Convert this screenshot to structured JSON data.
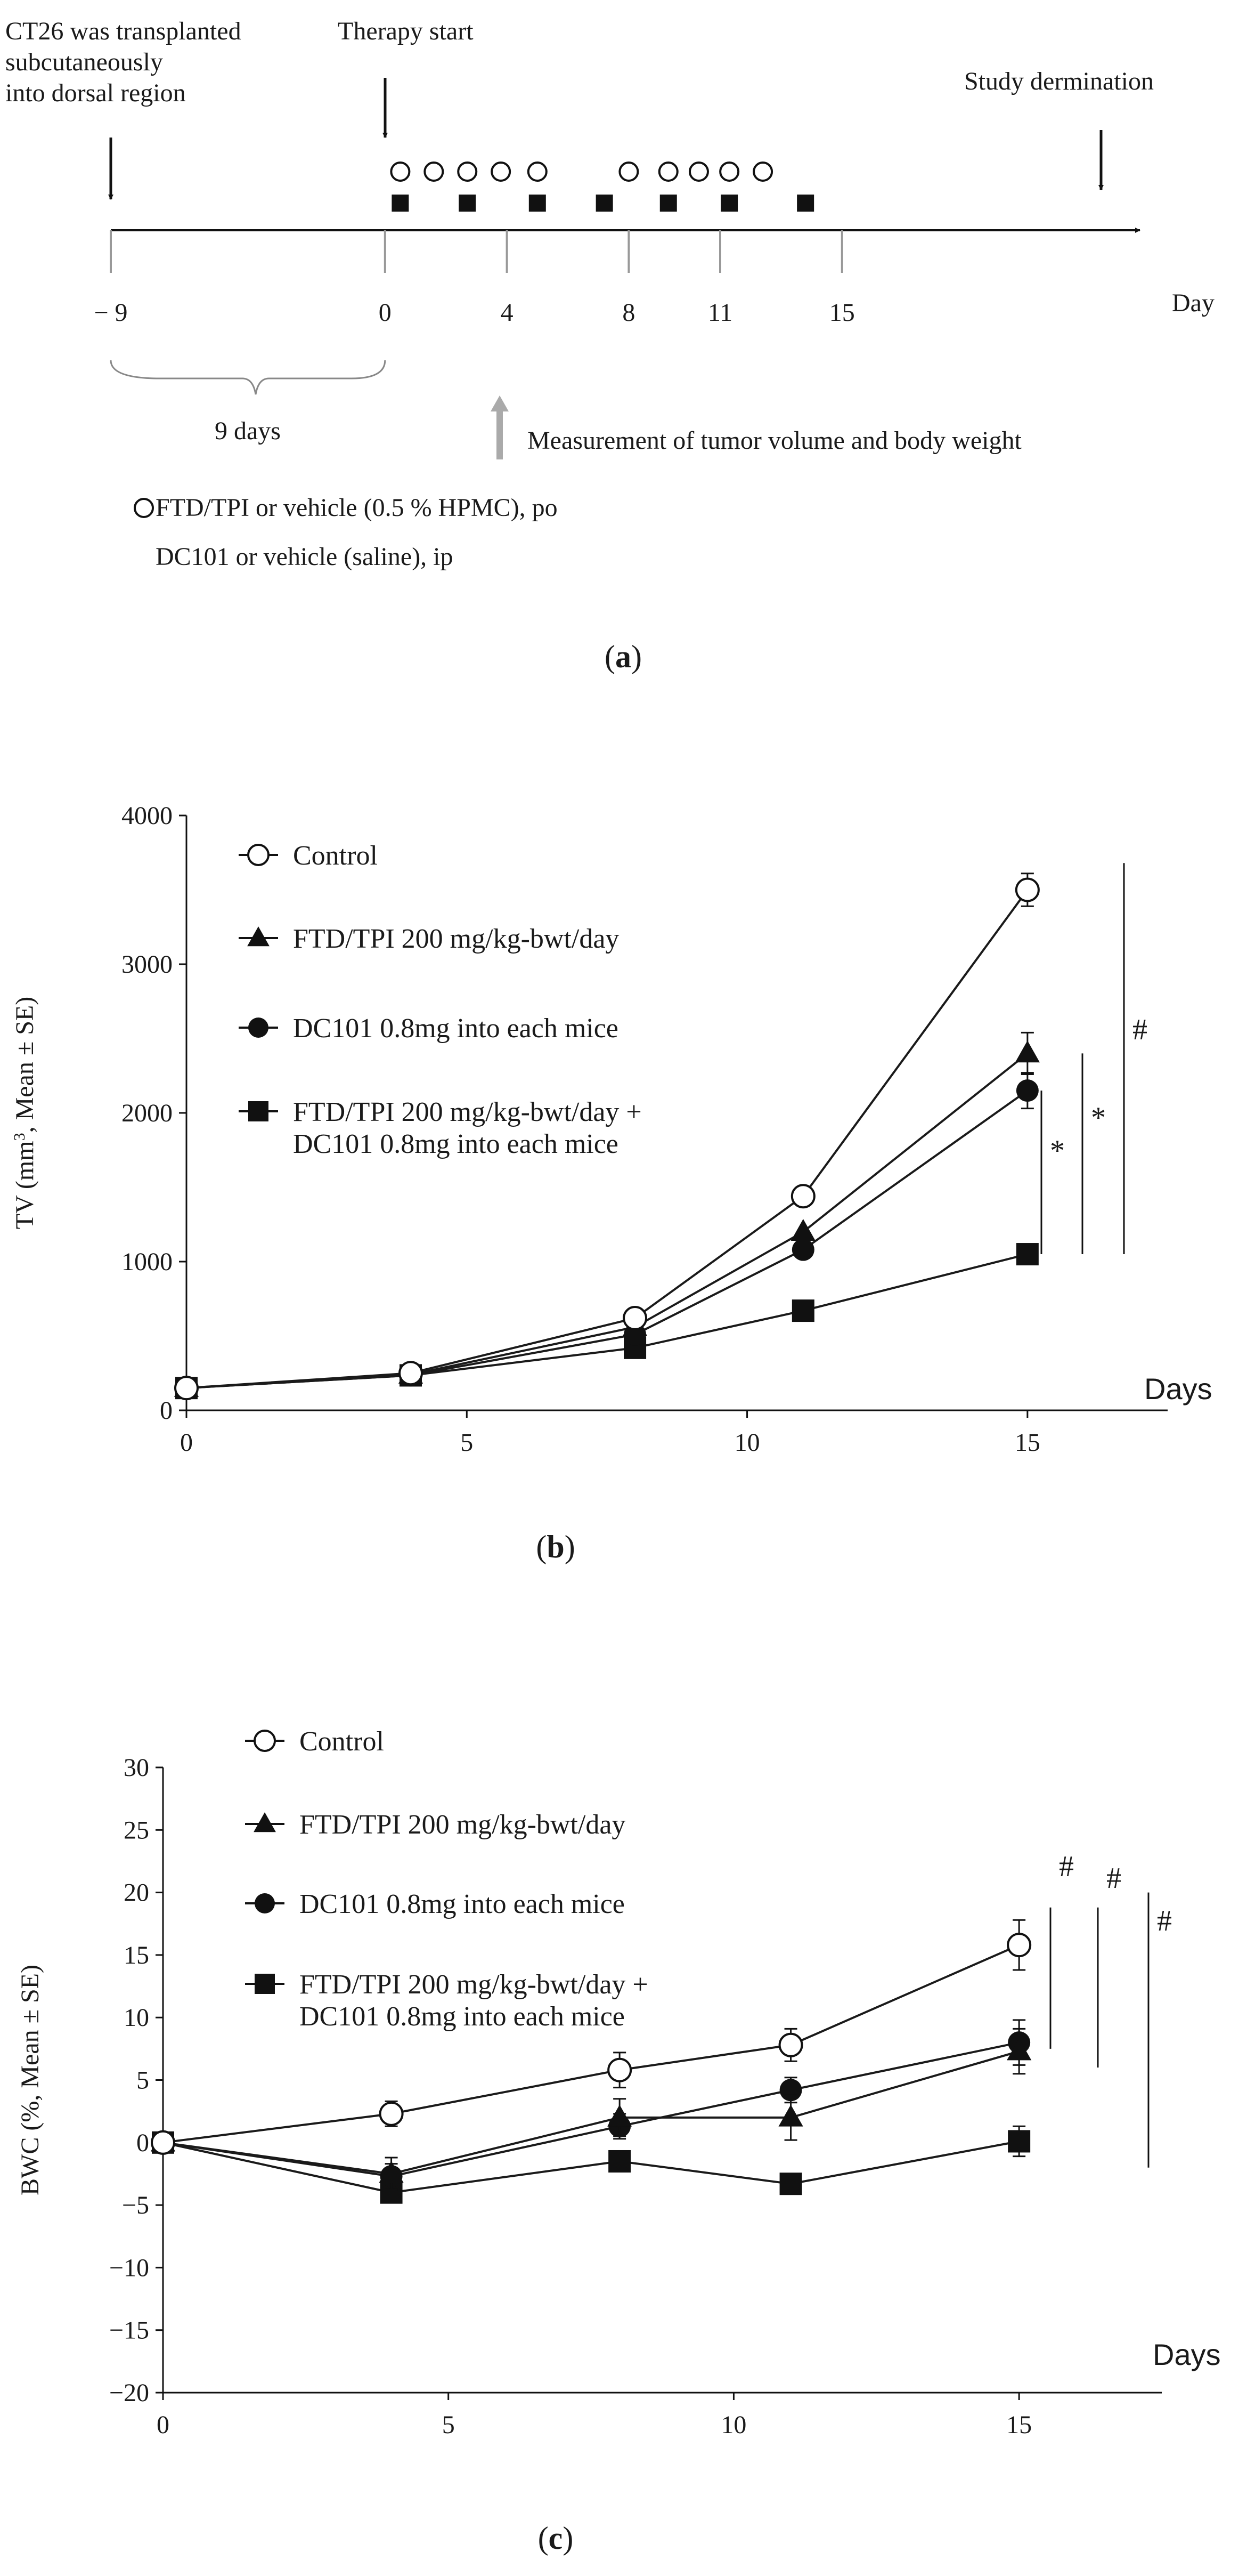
{
  "panel_a": {
    "transplant_label": [
      "CT26 was transplanted",
      "subcutaneously",
      " into dorsal region"
    ],
    "therapy_label": "Therapy start",
    "termination_label": "Study dermination",
    "day_ticks": [
      -9,
      0,
      4,
      8,
      11,
      15
    ],
    "day_tick_labels": [
      "− 9",
      "0",
      "4",
      "8",
      "11",
      "15"
    ],
    "day_unit": "Day",
    "ftd_dose_days": [
      0.5,
      1.6,
      2.7,
      3.8,
      5,
      8,
      9.3,
      10.3,
      11.3,
      12.4
    ],
    "dc101_dose_days": [
      0.5,
      2.7,
      5,
      7.2,
      9.3,
      11.3,
      13.8
    ],
    "interval_label": "9 days",
    "measurement_label": "Measurement of tumor volume and body weight",
    "legend": [
      {
        "symbol": "open-circle",
        "text": "FTD/TPI or vehicle (0.5 % HPMC), po"
      },
      {
        "symbol": "filled-square",
        "text": "DC101 or vehicle (saline), ip"
      }
    ],
    "caption": "a"
  },
  "chart_data": [
    {
      "type": "line",
      "panel": "b",
      "title": "",
      "xlabel": "Days",
      "ylabel": "TV (mm3, Mean ± SE)",
      "ylabel_parts": {
        "pre": "TV (mm",
        "sup": "3",
        "post": ", Mean ± SE)"
      },
      "xlim": [
        0,
        17.5
      ],
      "ylim": [
        0,
        4000
      ],
      "xticks": [
        0,
        5,
        10,
        15
      ],
      "yticks": [
        0,
        1000,
        2000,
        3000,
        4000
      ],
      "x": [
        0,
        4,
        8,
        11,
        15
      ],
      "series": [
        {
          "name": "Control",
          "marker": "open-circle",
          "values": [
            150,
            250,
            620,
            1440,
            3500
          ],
          "errors": [
            0,
            0,
            0,
            0,
            110
          ]
        },
        {
          "name": "FTD/TPI 200 mg/kg-bwt/day",
          "marker": "triangle",
          "values": [
            150,
            240,
            560,
            1200,
            2400
          ],
          "errors": [
            0,
            0,
            0,
            0,
            140
          ]
        },
        {
          "name": "DC101 0.8mg into each mice",
          "marker": "circle",
          "values": [
            150,
            235,
            510,
            1080,
            2150
          ],
          "errors": [
            0,
            0,
            0,
            0,
            120
          ]
        },
        {
          "name": "FTD/TPI 200 mg/kg-bwt/day + DC101 0.8mg into each mice",
          "marker": "square",
          "values": [
            150,
            235,
            420,
            670,
            1050
          ],
          "errors": [
            0,
            0,
            0,
            0,
            0
          ]
        }
      ],
      "legend_text": [
        [
          "Control"
        ],
        [
          "FTD/TPI 200 mg/kg-bwt/day"
        ],
        [
          "DC101 0.8mg into each mice"
        ],
        [
          "FTD/TPI 200 mg/kg-bwt/day +",
          "DC101 0.8mg into each mice"
        ]
      ],
      "significance": [
        {
          "label": "*",
          "y_from": 1050,
          "y_to": 2150
        },
        {
          "label": "*",
          "y_from": 1050,
          "y_to": 2400
        },
        {
          "label": "#",
          "y_from": 1050,
          "y_to": 3680
        }
      ],
      "caption": "b"
    },
    {
      "type": "line",
      "panel": "c",
      "title": "",
      "xlabel": "Days",
      "ylabel": "BWC (%, Mean ± SE)",
      "xlim": [
        0,
        17.5
      ],
      "ylim": [
        -20,
        30
      ],
      "xticks": [
        0,
        5,
        10,
        15
      ],
      "yticks": [
        -20,
        -15,
        -10,
        -5,
        0,
        5,
        10,
        15,
        20,
        25,
        30
      ],
      "ytick_labels": [
        "−20",
        "−15",
        "−10",
        "−5",
        "0",
        "5",
        "10",
        "15",
        "20",
        "25",
        "30"
      ],
      "x": [
        0,
        4,
        8,
        11,
        15
      ],
      "series": [
        {
          "name": "Control",
          "marker": "open-circle",
          "values": [
            0,
            2.3,
            5.8,
            7.8,
            15.8
          ],
          "errors": [
            0,
            1.0,
            1.4,
            1.3,
            2.0
          ]
        },
        {
          "name": "FTD/TPI 200 mg/kg-bwt/day",
          "marker": "triangle",
          "values": [
            0,
            -2.5,
            2.0,
            2.0,
            7.3
          ],
          "errors": [
            0,
            1.3,
            1.5,
            1.8,
            1.8
          ]
        },
        {
          "name": "DC101 0.8mg into each mice",
          "marker": "circle",
          "values": [
            0,
            -2.7,
            1.3,
            4.2,
            8.0
          ],
          "errors": [
            0,
            1.0,
            1.0,
            1.0,
            1.8
          ]
        },
        {
          "name": "FTD/TPI 200 mg/kg-bwt/day + DC101 0.8mg into each mice",
          "marker": "square",
          "values": [
            0,
            -4.0,
            -1.5,
            -3.3,
            0.1
          ],
          "errors": [
            0,
            0.8,
            0.5,
            0.5,
            1.2
          ]
        }
      ],
      "legend_text": [
        [
          "Control"
        ],
        [
          "FTD/TPI 200 mg/kg-bwt/day"
        ],
        [
          "DC101 0.8mg into each mice"
        ],
        [
          "FTD/TPI 200 mg/kg-bwt/day +",
          "DC101 0.8mg into each mice"
        ]
      ],
      "significance": [
        {
          "label": "#",
          "y_from": 7.5,
          "y_to": 18.8
        },
        {
          "label": "#",
          "y_from": 6,
          "y_to": 18.8
        },
        {
          "label": "#",
          "y_from": -2,
          "y_to": 20
        }
      ],
      "caption": "c"
    }
  ]
}
